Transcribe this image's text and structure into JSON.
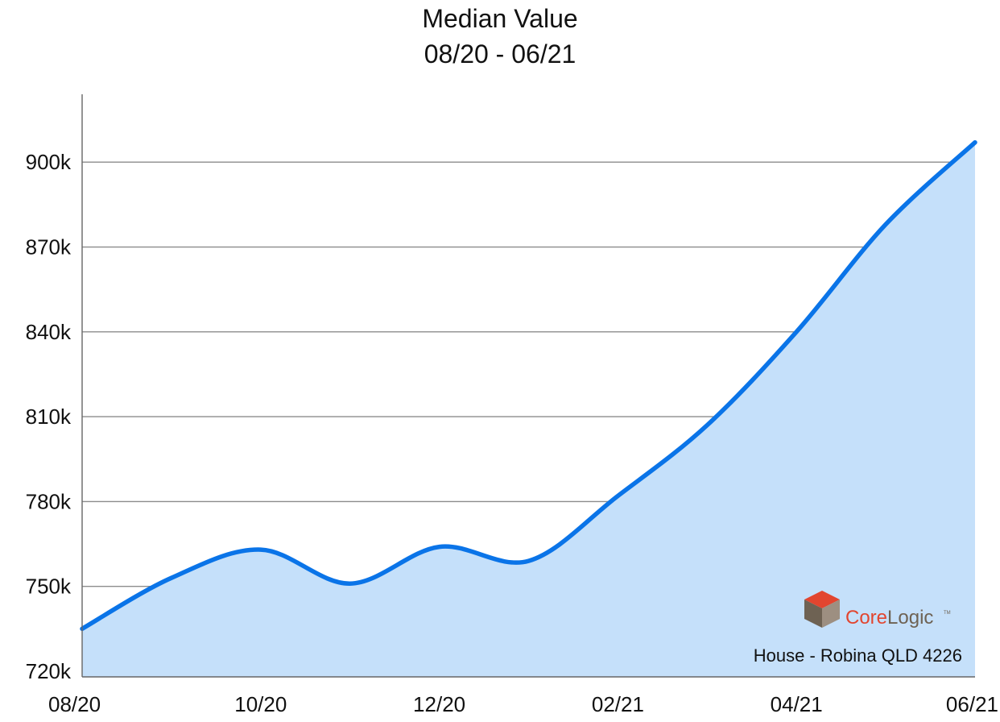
{
  "chart_data": {
    "type": "area",
    "title": "Median Value",
    "subtitle": "08/20 - 06/21",
    "xlabel": "",
    "ylabel": "",
    "x_ticks": [
      "08/20",
      "10/20",
      "12/20",
      "02/21",
      "04/21",
      "06/21"
    ],
    "y_ticks": [
      "720k",
      "750k",
      "780k",
      "810k",
      "840k",
      "870k",
      "900k"
    ],
    "y_tick_values": [
      720000,
      750000,
      780000,
      810000,
      840000,
      870000,
      900000
    ],
    "ylim": [
      718000,
      924000
    ],
    "grid": true,
    "series": [
      {
        "x": [
          "2020-08",
          "2020-09",
          "2020-10",
          "2020-11",
          "2020-12",
          "2021-01",
          "2021-02",
          "2021-03",
          "2021-04",
          "2021-05",
          "2021-06"
        ],
        "values": [
          735000,
          753000,
          763000,
          751000,
          764000,
          759000,
          782000,
          807000,
          840000,
          878000,
          907000
        ]
      }
    ],
    "colors": {
      "line": "#0a74e8",
      "fill": "#c5e0fa",
      "grid": "#8c8c8c"
    },
    "annotations": {
      "caption": "House - Robina QLD 4226"
    }
  },
  "logo": {
    "text_core": "Core",
    "text_logic": "Logic",
    "mark": "TM"
  }
}
